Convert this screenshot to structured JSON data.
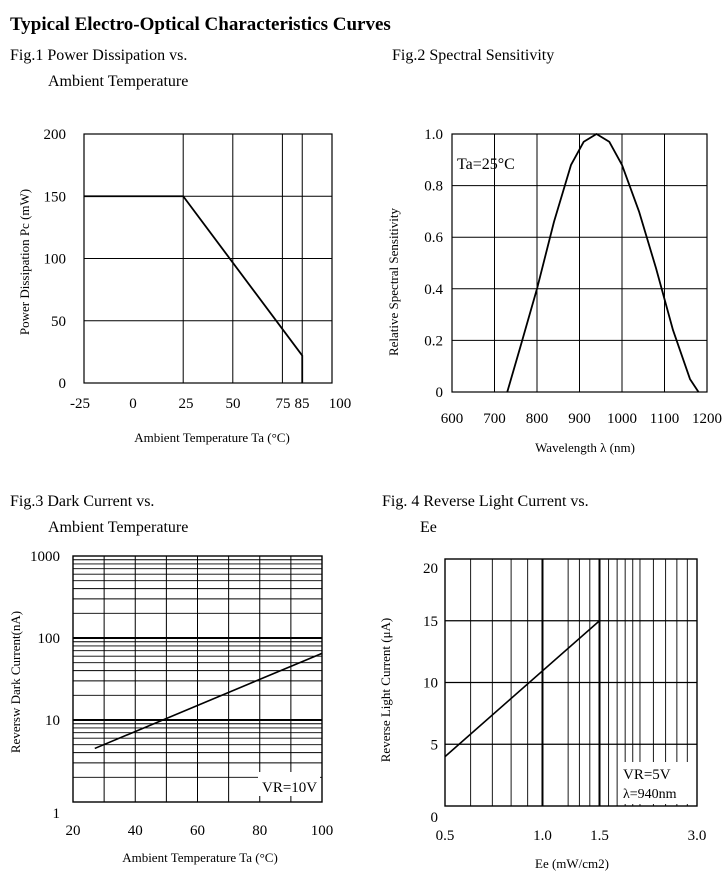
{
  "page_title": "Typical Electro-Optical Characteristics Curves",
  "chart_data": [
    {
      "type": "line",
      "title": "Fig.1 Power Dissipation vs.",
      "subtitle": "Ambient Temperature",
      "xlabel": "Ambient Temperature Ta (°C)",
      "ylabel": "Power Dissipation Pc (mW)",
      "x_ticks": [
        "-25",
        "0",
        "25",
        "50",
        "75",
        "85",
        "100"
      ],
      "y_ticks": [
        "0",
        "50",
        "100",
        "150",
        "200"
      ],
      "xlim": [
        -25,
        100
      ],
      "ylim": [
        0,
        200
      ],
      "series": [
        {
          "x": [
            -25,
            25,
            85,
            85
          ],
          "y": [
            150,
            150,
            22,
            0
          ]
        }
      ]
    },
    {
      "type": "line",
      "title": "Fig.2 Spectral Sensitivity",
      "xlabel": "Wavelength λ (nm)",
      "ylabel": "Relative Spectral Sensitivity",
      "annotation": "Ta=25°C",
      "x_ticks": [
        "600",
        "700",
        "800",
        "900",
        "1000",
        "1100",
        "1200"
      ],
      "y_ticks": [
        "0",
        "0.2",
        "0.4",
        "0.6",
        "0.8",
        "1.0"
      ],
      "xlim": [
        600,
        1200
      ],
      "ylim": [
        0,
        1.0
      ],
      "series": [
        {
          "x": [
            730,
            760,
            800,
            840,
            880,
            910,
            940,
            970,
            1000,
            1040,
            1080,
            1120,
            1160,
            1180
          ],
          "y": [
            0,
            0.17,
            0.4,
            0.66,
            0.88,
            0.97,
            1.0,
            0.97,
            0.88,
            0.7,
            0.48,
            0.24,
            0.05,
            0
          ]
        }
      ]
    },
    {
      "type": "line",
      "title": "Fig.3 Dark Current vs.",
      "subtitle": "Ambient Temperature",
      "xlabel": "Ambient Temperature Ta (°C)",
      "ylabel": "Reversw Dark Current(nA)",
      "annotation": "VR=10V",
      "x_ticks": [
        "20",
        "40",
        "60",
        "80",
        "100"
      ],
      "y_ticks": [
        "1",
        "10",
        "100",
        "1000"
      ],
      "xlim": [
        20,
        100
      ],
      "ylim": [
        1,
        1000
      ],
      "y_scale": "log",
      "series": [
        {
          "x": [
            27,
            100
          ],
          "y": [
            4.5,
            65
          ]
        }
      ]
    },
    {
      "type": "line",
      "title": "Fig. 4 Reverse Light Current vs.",
      "subtitle": "Ee",
      "xlabel": "Ee (mW/cm2)",
      "ylabel": "Reverse Light Current (μA)",
      "annotation_1": "VR=5V",
      "annotation_2": "λ=940nm",
      "x_ticks": [
        "0.5",
        "1.0",
        "1.5",
        "3.0"
      ],
      "y_ticks": [
        "0",
        "5",
        "10",
        "15",
        "20"
      ],
      "xlim": [
        0.5,
        3.0
      ],
      "ylim": [
        0,
        20
      ],
      "x_scale": "log",
      "series": [
        {
          "x": [
            0.5,
            1.5
          ],
          "y": [
            4.0,
            15.0
          ]
        }
      ]
    }
  ]
}
